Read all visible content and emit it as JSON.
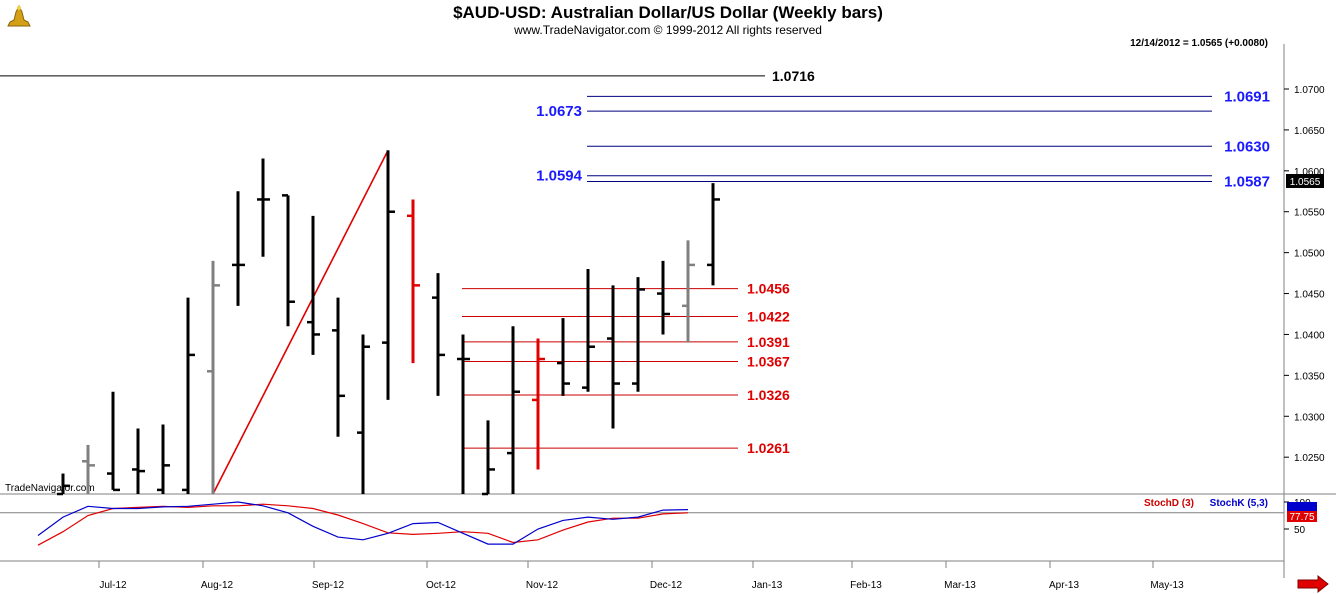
{
  "header": {
    "title": "$AUD-USD:  Australian Dollar/US Dollar  (Weekly bars)",
    "copyright": "www.TradeNavigator.com © 1999-2012 All rights reserved",
    "last_info": "12/14/2012 = 1.0565 (+0.0080)",
    "watermark": "TradeNavigator.com"
  },
  "colors": {
    "bar_up": "#000000",
    "bar_gray": "#808080",
    "bar_red": "#e00000",
    "support": "#cc0000",
    "resistance": "#000080",
    "stoch_d": "#e00000",
    "stoch_k": "#0000cc"
  },
  "chart_data": [
    {
      "type": "ohlc",
      "title": "$AUD-USD:  Australian Dollar/US Dollar  (Weekly bars)",
      "ylim": [
        1.0205,
        1.0755
      ],
      "y_ticks": [
        "1.0700",
        "1.0650",
        "1.0600",
        "1.0550",
        "1.0500",
        "1.0450",
        "1.0400",
        "1.0350",
        "1.0300",
        "1.0250"
      ],
      "x_ticks": [
        "Jul-12",
        "Aug-12",
        "Sep-12",
        "Oct-12",
        "Nov-12",
        "Dec-12",
        "Jan-13",
        "Feb-13",
        "Mar-13",
        "Apr-13",
        "May-13"
      ],
      "last_price_label": "1.0565",
      "bars": [
        {
          "o": 1.0205,
          "h": 1.023,
          "l": 1.0205,
          "c": 1.0215,
          "color": "black"
        },
        {
          "o": 1.0245,
          "h": 1.0265,
          "l": 1.0205,
          "c": 1.024,
          "color": "gray"
        },
        {
          "o": 1.023,
          "h": 1.033,
          "l": 1.021,
          "c": 1.021,
          "color": "black"
        },
        {
          "o": 1.0235,
          "h": 1.0285,
          "l": 1.0205,
          "c": 1.0233,
          "color": "black"
        },
        {
          "o": 1.021,
          "h": 1.029,
          "l": 1.0205,
          "c": 1.024,
          "color": "black"
        },
        {
          "o": 1.021,
          "h": 1.0445,
          "l": 1.0205,
          "c": 1.0375,
          "color": "black"
        },
        {
          "o": 1.0355,
          "h": 1.049,
          "l": 1.0205,
          "c": 1.046,
          "color": "gray"
        },
        {
          "o": 1.0485,
          "h": 1.0575,
          "l": 1.0435,
          "c": 1.0485,
          "color": "black"
        },
        {
          "o": 1.0565,
          "h": 1.0615,
          "l": 1.0495,
          "c": 1.0565,
          "color": "black"
        },
        {
          "o": 1.057,
          "h": 1.057,
          "l": 1.041,
          "c": 1.044,
          "color": "black"
        },
        {
          "o": 1.0415,
          "h": 1.0545,
          "l": 1.0375,
          "c": 1.04,
          "color": "black"
        },
        {
          "o": 1.0405,
          "h": 1.0445,
          "l": 1.0275,
          "c": 1.0325,
          "color": "black"
        },
        {
          "o": 1.028,
          "h": 1.04,
          "l": 1.0205,
          "c": 1.0385,
          "color": "black"
        },
        {
          "o": 1.039,
          "h": 1.0625,
          "l": 1.032,
          "c": 1.055,
          "color": "black"
        },
        {
          "o": 1.0545,
          "h": 1.0565,
          "l": 1.0365,
          "c": 1.046,
          "color": "red"
        },
        {
          "o": 1.0445,
          "h": 1.0475,
          "l": 1.0325,
          "c": 1.0375,
          "color": "black"
        },
        {
          "o": 1.037,
          "h": 1.04,
          "l": 1.0205,
          "c": 1.037,
          "color": "black"
        },
        {
          "o": 1.0205,
          "h": 1.0295,
          "l": 1.0205,
          "c": 1.0235,
          "color": "black"
        },
        {
          "o": 1.0255,
          "h": 1.041,
          "l": 1.0205,
          "c": 1.033,
          "color": "black"
        },
        {
          "o": 1.032,
          "h": 1.0395,
          "l": 1.0235,
          "c": 1.037,
          "color": "red"
        },
        {
          "o": 1.0365,
          "h": 1.042,
          "l": 1.0325,
          "c": 1.034,
          "color": "black"
        },
        {
          "o": 1.0335,
          "h": 1.048,
          "l": 1.033,
          "c": 1.0385,
          "color": "black"
        },
        {
          "o": 1.0395,
          "h": 1.046,
          "l": 1.0285,
          "c": 1.034,
          "color": "black"
        },
        {
          "o": 1.034,
          "h": 1.047,
          "l": 1.033,
          "c": 1.0455,
          "color": "black"
        },
        {
          "o": 1.045,
          "h": 1.049,
          "l": 1.04,
          "c": 1.0425,
          "color": "black"
        },
        {
          "o": 1.0435,
          "h": 1.0515,
          "l": 1.039,
          "c": 1.0485,
          "color": "gray"
        },
        {
          "o": 1.0485,
          "h": 1.0585,
          "l": 1.046,
          "c": 1.0565,
          "color": "black"
        }
      ],
      "levels": [
        {
          "value": 1.0716,
          "label": "1.0716",
          "color": "black"
        },
        {
          "value": 1.0691,
          "label": "1.0691",
          "color": "blue"
        },
        {
          "value": 1.0673,
          "label": "1.0673",
          "color": "blue"
        },
        {
          "value": 1.063,
          "label": "1.0630",
          "color": "blue"
        },
        {
          "value": 1.0594,
          "label": "1.0594",
          "color": "blue"
        },
        {
          "value": 1.0587,
          "label": "1.0587",
          "color": "blue"
        },
        {
          "value": 1.0456,
          "label": "1.0456",
          "color": "red"
        },
        {
          "value": 1.0422,
          "label": "1.0422",
          "color": "red"
        },
        {
          "value": 1.0391,
          "label": "1.0391",
          "color": "red"
        },
        {
          "value": 1.0367,
          "label": "1.0367",
          "color": "red"
        },
        {
          "value": 1.0326,
          "label": "1.0326",
          "color": "red"
        },
        {
          "value": 1.0261,
          "label": "1.0261",
          "color": "red"
        }
      ],
      "trend_line": {
        "from_bar": 6,
        "from_value": 1.0205,
        "to_bar": 13,
        "to_value": 1.0625
      }
    },
    {
      "type": "line",
      "ylim": [
        0,
        100
      ],
      "y_ticks": [
        "100",
        "50"
      ],
      "reference_line": 80,
      "series": [
        {
          "name": "StochD (3)",
          "color": "red",
          "values": [
            20,
            45,
            75,
            88,
            90,
            92,
            90,
            93,
            93,
            96,
            93,
            88,
            76,
            60,
            43,
            40,
            42,
            45,
            42,
            25,
            30,
            48,
            63,
            70,
            70,
            78,
            80
          ]
        },
        {
          "name": "StochK (5,3)",
          "color": "blue",
          "values": [
            38,
            72,
            92,
            88,
            88,
            91,
            92,
            96,
            100,
            93,
            80,
            55,
            35,
            30,
            42,
            60,
            62,
            42,
            22,
            22,
            50,
            66,
            72,
            68,
            72,
            85,
            86
          ]
        }
      ],
      "last_value_label": "77.75"
    }
  ]
}
